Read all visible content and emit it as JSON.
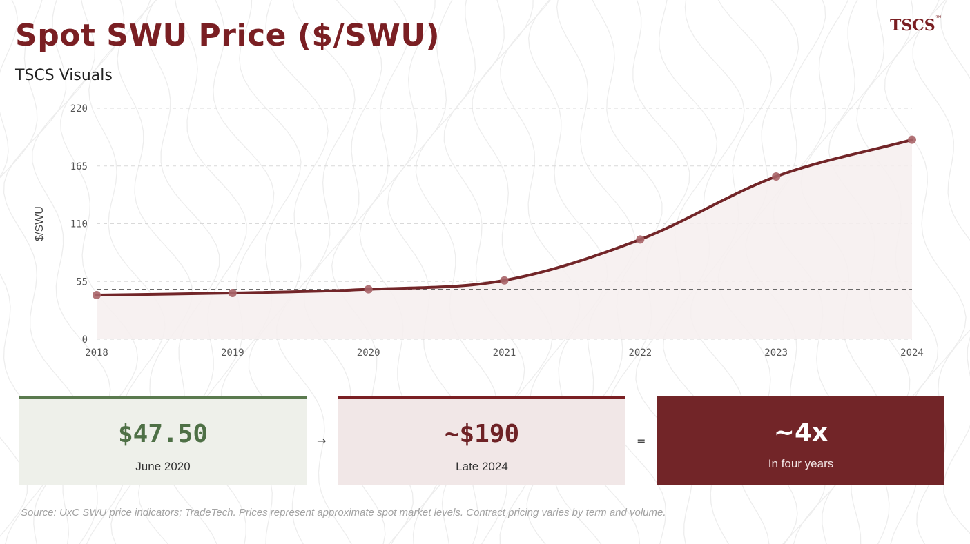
{
  "header": {
    "title": "Spot SWU Price ($/SWU)",
    "subtitle": "TSCS Visuals",
    "logo": "TSCS",
    "logo_mark": "™"
  },
  "chart_data": {
    "type": "line",
    "x": [
      2018,
      2019,
      2020,
      2021,
      2022,
      2023,
      2024
    ],
    "series": [
      {
        "values": [
          42,
          44,
          47.5,
          56,
          95,
          155,
          190
        ]
      }
    ],
    "reference_line": 47.5,
    "xlabel": "",
    "ylabel": "$/SWU",
    "yticks": [
      0,
      55,
      110,
      165,
      220
    ],
    "ylim": [
      0,
      220
    ],
    "xlim": [
      2018,
      2024
    ],
    "grid": true,
    "line_color": "#722528",
    "fill_color": "#f6eeef",
    "reference_color": "#555555"
  },
  "cards": [
    {
      "value": "$47.50",
      "caption": "June 2020"
    },
    {
      "value": "~$190",
      "caption": "Late 2024"
    },
    {
      "value": "~4x",
      "caption": "In four years"
    }
  ],
  "operators": {
    "arrow": "→",
    "equals": "="
  },
  "footer": {
    "source": "Source: UxC SWU price indicators; TradeTech. Prices represent approximate spot market levels. Contract pricing varies by term and volume."
  }
}
